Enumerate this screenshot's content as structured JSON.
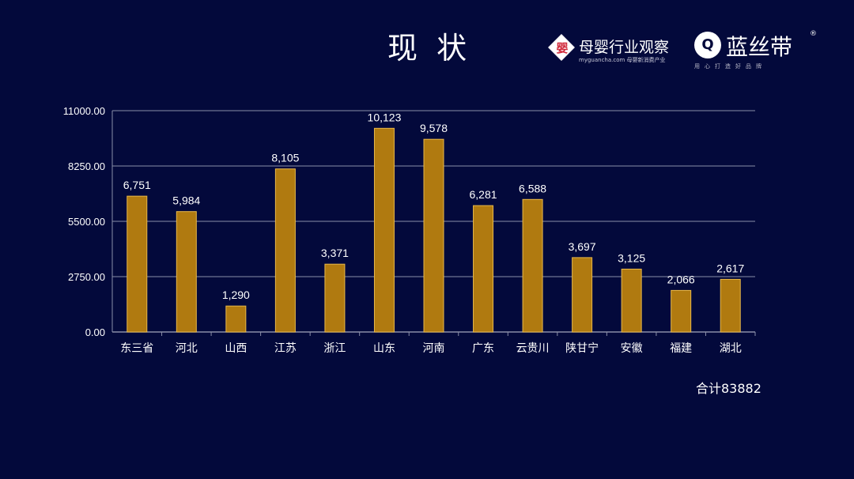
{
  "slide": {
    "title": "现 状",
    "total": "合计83882"
  },
  "logos": {
    "logo1_mark": "婴",
    "logo1_name": "母婴行业观察",
    "logo1_sub": "myguancha.com 母婴新消费产业",
    "logo2_mark": "Q",
    "logo2_name": "蓝丝带",
    "logo2_reg": "®",
    "logo2_sub": "用心打造好品牌"
  },
  "colors": {
    "background": "#03093b",
    "bar": "#b07a10",
    "bar_edge": "#e8b84a",
    "grid": "#8a8ea8",
    "text": "#ffffff"
  },
  "chart_data": {
    "type": "bar",
    "title": "",
    "xlabel": "",
    "ylabel": "",
    "categories": [
      "东三省",
      "河北",
      "山西",
      "江苏",
      "浙江",
      "山东",
      "河南",
      "广东",
      "云贵川",
      "陕甘宁",
      "安徽",
      "福建",
      "湖北"
    ],
    "values": [
      6751,
      5984,
      1290,
      8105,
      3371,
      10123,
      9578,
      6281,
      6588,
      3697,
      3125,
      2066,
      2617
    ],
    "value_labels": [
      "6,751",
      "5,984",
      "1,290",
      "8,105",
      "3,371",
      "10,123",
      "9,578",
      "6,281",
      "6,588",
      "3,697",
      "3,125",
      "2,066",
      "2,617"
    ],
    "ylim": [
      0,
      11000
    ],
    "yticks": [
      0,
      2750,
      5500,
      8250,
      11000
    ],
    "ytick_labels": [
      "0.00",
      "2750.00",
      "5500.00",
      "8250.00",
      "11000.00"
    ],
    "grid": true,
    "legend": "none"
  }
}
